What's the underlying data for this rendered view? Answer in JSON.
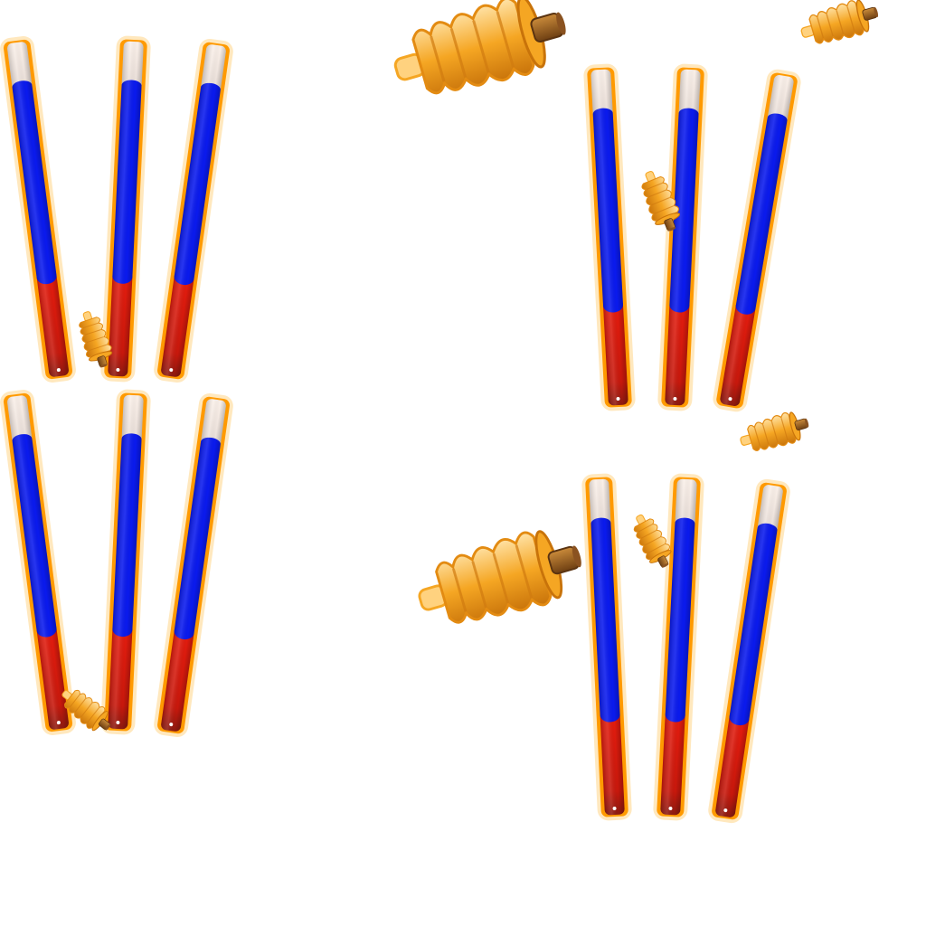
{
  "scene": {
    "background": "#ffffff",
    "description_free": true
  },
  "palette": {
    "stump_outline": "#ff9a00",
    "stump_glow": "#ffe0a8",
    "band_top": "#f4e6df",
    "band_middle": "#0a1aee",
    "band_bottom": "#e41c0e",
    "band_bottom_dark": "#8c1a10",
    "bail_light": "#ffd27f",
    "bail_mid": "#f5a623",
    "bail_dark": "#c8730a",
    "bail_pin": "#7a4a1a"
  },
  "wicket_sets": [
    {
      "id": "wicket-set-top-left",
      "stump_count": 3,
      "bail_count": 1,
      "state": "bail-fallen"
    },
    {
      "id": "wicket-set-bottom-left",
      "stump_count": 3,
      "bail_count": 1,
      "state": "bail-fallen"
    },
    {
      "id": "wicket-set-top-right",
      "stump_count": 3,
      "bail_count": 3,
      "state": "bails-flying"
    },
    {
      "id": "wicket-set-bottom-right",
      "stump_count": 3,
      "bail_count": 3,
      "state": "bails-flying"
    }
  ]
}
